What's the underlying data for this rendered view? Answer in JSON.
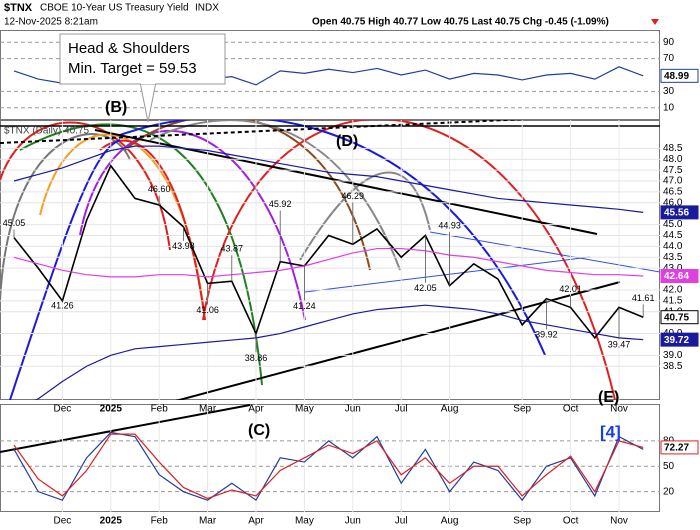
{
  "header": {
    "symbol": "$TNX",
    "name": "CBOE 10-Year US Treasury Yield",
    "exchange": "INDX",
    "datetime": "12-Nov-2025 8:21am",
    "quote": "Open 40.75 High 40.77 Low 40.75 Last 40.75 Chg -0.45 (-1.09%)"
  },
  "chart_data": [
    {
      "type": "line",
      "ylim": [
        0,
        100
      ],
      "yticks": [
        90,
        70,
        30,
        10
      ],
      "series": [
        {
          "color": "#1f3fa0",
          "value_tag": true,
          "values": [
            55,
            45,
            40,
            60,
            65,
            58,
            55,
            50,
            45,
            48,
            38,
            55,
            52,
            57,
            53,
            58,
            50,
            56,
            45,
            52,
            50,
            44,
            50,
            52,
            45,
            60,
            48.99
          ]
        }
      ]
    },
    {
      "type": "line",
      "legend_text": "$TNX (Daily) 40.75",
      "annotations": [
        "Head & Shoulders",
        "Min. Target = 59.53"
      ],
      "wave_labels": [
        "(B)",
        "(C)",
        "(D)",
        "(E)"
      ],
      "categories": [
        null,
        null,
        "Dec",
        null,
        "2025",
        null,
        "Feb",
        null,
        "Mar",
        null,
        "Apr",
        null,
        "May",
        null,
        "Jun",
        null,
        "Jul",
        null,
        "Aug",
        null,
        null,
        "Sep",
        null,
        "Oct",
        null,
        "Nov",
        null
      ],
      "ylim": [
        36.95,
        49.8
      ],
      "yticks": [
        48.5,
        {
          "value": 48,
          "label": "48.0"
        },
        47.5,
        {
          "value": 47,
          "label": "47.0"
        },
        46.5,
        {
          "value": 46,
          "label": "46.0"
        },
        {
          "value": 45,
          "label": "45.0"
        },
        44.5,
        {
          "value": 44,
          "label": "44.0"
        },
        43.5,
        {
          "value": 43,
          "label": "43.0"
        },
        {
          "value": 42,
          "label": "42.0"
        },
        41.5,
        {
          "value": 41,
          "label": "41.0"
        },
        {
          "value": 40,
          "label": "40.0"
        },
        {
          "value": 39,
          "label": "39.0"
        },
        38.5
      ],
      "grid": true,
      "series": [
        {
          "color": "#000000",
          "value_tag": true,
          "values": [
            44.4,
            43.0,
            41.5,
            45.2,
            47.7,
            46.2,
            45.9,
            44.9,
            42.3,
            42.4,
            40.0,
            43.3,
            43.1,
            44.5,
            44.1,
            44.8,
            43.5,
            44.5,
            42.2,
            43.2,
            42.5,
            40.4,
            41.6,
            41.2,
            39.8,
            41.2,
            40.75
          ]
        },
        {
          "color": "#1a1a9c",
          "value_tag": true,
          "values": [
            47.0,
            47.3,
            47.6,
            48.0,
            48.4,
            48.6,
            48.6,
            48.5,
            48.4,
            48.2,
            48.0,
            47.8,
            47.6,
            47.4,
            47.3,
            47.2,
            47.0,
            46.8,
            46.6,
            46.4,
            46.2,
            46.1,
            46.0,
            45.9,
            45.8,
            45.7,
            45.56
          ]
        },
        {
          "color": "#e040e0",
          "value_tag": true,
          "values": [
            43.5,
            43.2,
            42.9,
            42.7,
            42.6,
            42.6,
            42.7,
            42.7,
            42.6,
            42.7,
            42.8,
            42.9,
            43.1,
            43.4,
            43.7,
            43.9,
            43.9,
            43.8,
            43.6,
            43.5,
            43.3,
            43.1,
            42.9,
            42.8,
            42.7,
            42.7,
            42.64
          ]
        },
        {
          "color": "#1a1a9c",
          "value_tag": true,
          "values": [
            36.5,
            37.0,
            37.8,
            38.5,
            39.0,
            39.3,
            39.4,
            39.5,
            39.6,
            39.7,
            39.8,
            40.0,
            40.3,
            40.6,
            40.9,
            41.1,
            41.2,
            41.3,
            41.2,
            41.1,
            40.9,
            40.6,
            40.4,
            40.2,
            40.0,
            39.8,
            39.72
          ]
        }
      ],
      "pivots": {
        "values": [
          45.05,
          null,
          41.26,
          null,
          null,
          null,
          46.6,
          43.98,
          41.06,
          43.87,
          38.86,
          45.92,
          41.24,
          null,
          46.29,
          null,
          null,
          42.05,
          44.93,
          null,
          null,
          null,
          39.92,
          42.01,
          null,
          39.47,
          41.61
        ],
        "value_labels": [
          "45.05",
          null,
          "41.26",
          null,
          null,
          null,
          "46.60",
          "43.98",
          "41.06",
          "43.87",
          "38.86",
          "45.92",
          "41.24",
          null,
          "46.29",
          null,
          null,
          "42.05",
          "44.93",
          null,
          null,
          null,
          "39.92",
          "42.01",
          null,
          "39.47",
          "41.61"
        ]
      }
    },
    {
      "type": "line",
      "wave_label": "[4]",
      "categories": [
        null,
        null,
        "Dec",
        null,
        "2025",
        null,
        "Feb",
        null,
        "Mar",
        null,
        "Apr",
        null,
        "May",
        null,
        "Jun",
        null,
        "Jul",
        null,
        "Aug",
        null,
        null,
        "Sep",
        null,
        "Oct",
        null,
        "Nov",
        null
      ],
      "ylim": [
        -4,
        120
      ],
      "yticks": [
        80,
        50,
        20
      ],
      "series": [
        {
          "color": "#1f3fa0",
          "value_tag": false,
          "values": [
            70,
            20,
            10,
            60,
            90,
            85,
            40,
            20,
            10,
            30,
            10,
            60,
            55,
            80,
            60,
            85,
            30,
            70,
            20,
            55,
            45,
            10,
            50,
            60,
            15,
            85,
            70
          ]
        },
        {
          "color": "#e02020",
          "value_tag": true,
          "values": [
            75,
            35,
            15,
            45,
            88,
            88,
            55,
            25,
            12,
            22,
            15,
            45,
            60,
            75,
            65,
            80,
            40,
            60,
            30,
            50,
            50,
            15,
            40,
            62,
            20,
            80,
            72.27
          ]
        }
      ]
    }
  ]
}
